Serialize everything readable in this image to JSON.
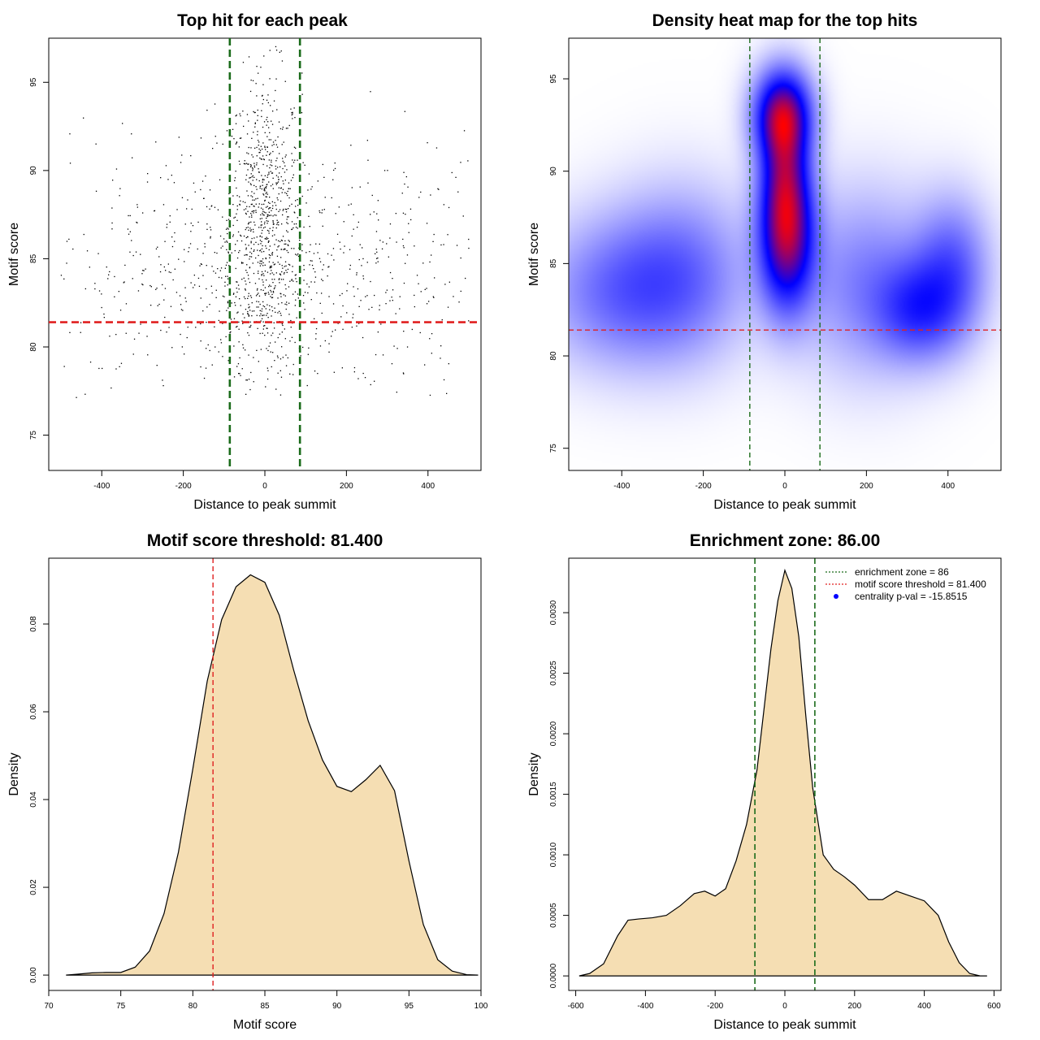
{
  "colors": {
    "green_line": "#1a6b1a",
    "red_line": "#e02020",
    "density_fill": "#f5deb3",
    "heat_low": "#ffffff",
    "heat_mid": "#0000ff",
    "heat_high": "#ff0000",
    "legend_point": "#0000ff"
  },
  "chart_data": [
    {
      "type": "scatter",
      "title": "Top hit for each peak",
      "xlabel": "Distance to peak summit",
      "ylabel": "Motif score",
      "xlim": [
        -530,
        530
      ],
      "ylim": [
        73,
        97.5
      ],
      "xticks": [
        -400,
        -200,
        0,
        200,
        400
      ],
      "yticks": [
        75,
        80,
        85,
        90,
        95
      ],
      "vlines": [
        -86,
        86
      ],
      "hline": 81.4,
      "n_points": 1500,
      "clusters": [
        {
          "x_center": 0,
          "x_spread": 45,
          "y_center": 87,
          "y_spread": 4.2,
          "weight": 0.5
        },
        {
          "x_center": 0,
          "x_spread": 300,
          "y_center": 84,
          "y_spread": 3.6,
          "weight": 0.5
        }
      ]
    },
    {
      "type": "heatmap",
      "title": "Density heat map for the top hits",
      "xlabel": "Distance to peak summit",
      "ylabel": "Motif score",
      "xlim": [
        -530,
        530
      ],
      "ylim": [
        73.8,
        97.2
      ],
      "xticks": [
        -400,
        -200,
        0,
        200,
        400
      ],
      "yticks": [
        75,
        80,
        85,
        90,
        95
      ],
      "vlines": [
        -86,
        86
      ],
      "hline": 81.4,
      "hotspots": [
        {
          "x": -5,
          "y": 93,
          "sx": 45,
          "sy": 1.6,
          "w": 1.0
        },
        {
          "x": 5,
          "y": 86.5,
          "sx": 45,
          "sy": 2.6,
          "w": 0.95
        },
        {
          "x": 0,
          "y": 89.8,
          "sx": 38,
          "sy": 2.2,
          "w": 0.55
        },
        {
          "x": 330,
          "y": 82.5,
          "sx": 70,
          "sy": 1.8,
          "w": 0.4
        },
        {
          "x": 410,
          "y": 84.8,
          "sx": 60,
          "sy": 2.4,
          "w": 0.33
        },
        {
          "x": -400,
          "y": 83.5,
          "sx": 130,
          "sy": 2.6,
          "w": 0.3
        },
        {
          "x": -250,
          "y": 84.5,
          "sx": 110,
          "sy": 3.0,
          "w": 0.25
        },
        {
          "x": 200,
          "y": 84,
          "sx": 110,
          "sy": 3.2,
          "w": 0.25
        }
      ]
    },
    {
      "type": "area",
      "title": "Motif score threshold: 81.400",
      "xlabel": "Motif score",
      "ylabel": "Density",
      "xlim": [
        70,
        100
      ],
      "ylim": [
        -0.0035,
        0.095
      ],
      "xticks": [
        70,
        75,
        80,
        85,
        90,
        95,
        100
      ],
      "yticks": [
        0.0,
        0.02,
        0.04,
        0.06,
        0.08
      ],
      "ytick_labels": [
        "0.00",
        "0.02",
        "0.04",
        "0.06",
        "0.08"
      ],
      "vline": 81.4,
      "x": [
        71.2,
        72,
        73,
        74,
        75,
        76,
        77,
        78,
        79,
        80,
        81,
        82,
        83,
        84,
        85,
        86,
        87,
        88,
        89,
        90,
        91,
        92,
        93,
        94,
        95,
        96,
        97,
        98,
        99,
        99.8
      ],
      "y": [
        0.0,
        0.0002,
        0.0005,
        0.0006,
        0.0006,
        0.0018,
        0.0055,
        0.014,
        0.028,
        0.047,
        0.067,
        0.081,
        0.0885,
        0.0912,
        0.0895,
        0.082,
        0.0695,
        0.058,
        0.049,
        0.043,
        0.0418,
        0.0445,
        0.0478,
        0.042,
        0.026,
        0.0115,
        0.0035,
        0.0009,
        0.0001,
        0.0
      ]
    },
    {
      "type": "area",
      "title": "Enrichment zone: 86.00",
      "xlabel": "Distance to peak summit",
      "ylabel": "Density",
      "xlim": [
        -620,
        620
      ],
      "ylim": [
        -0.00012,
        0.00345
      ],
      "xticks": [
        -600,
        -400,
        -200,
        0,
        200,
        400,
        600
      ],
      "yticks": [
        0.0,
        0.0005,
        0.001,
        0.0015,
        0.002,
        0.0025,
        0.003
      ],
      "ytick_labels": [
        "0.0000",
        "0.0005",
        "0.0010",
        "0.0015",
        "0.0020",
        "0.0025",
        "0.0030"
      ],
      "vlines": [
        -86,
        86
      ],
      "x": [
        -590,
        -560,
        -520,
        -480,
        -450,
        -420,
        -380,
        -340,
        -300,
        -260,
        -230,
        -200,
        -170,
        -140,
        -110,
        -80,
        -60,
        -40,
        -20,
        0,
        20,
        40,
        60,
        80,
        110,
        140,
        170,
        200,
        240,
        280,
        320,
        360,
        400,
        440,
        470,
        500,
        530,
        560,
        580
      ],
      "y": [
        0.0,
        2e-05,
        0.0001,
        0.00033,
        0.00046,
        0.00047,
        0.00048,
        0.0005,
        0.00058,
        0.00068,
        0.0007,
        0.00066,
        0.00072,
        0.00095,
        0.00125,
        0.0017,
        0.0022,
        0.0027,
        0.0031,
        0.00335,
        0.0032,
        0.0028,
        0.00215,
        0.00155,
        0.001,
        0.00088,
        0.00082,
        0.00075,
        0.00063,
        0.00063,
        0.0007,
        0.00066,
        0.00062,
        0.0005,
        0.00028,
        0.00011,
        2e-05,
        0.0,
        0.0
      ],
      "legend": [
        {
          "label": "enrichment zone = 86",
          "style": "dotted-green"
        },
        {
          "label": "motif score threshold = 81.400",
          "style": "dotted-red"
        },
        {
          "label": "centrality p-val = -15.8515",
          "style": "point-blue"
        }
      ]
    }
  ]
}
